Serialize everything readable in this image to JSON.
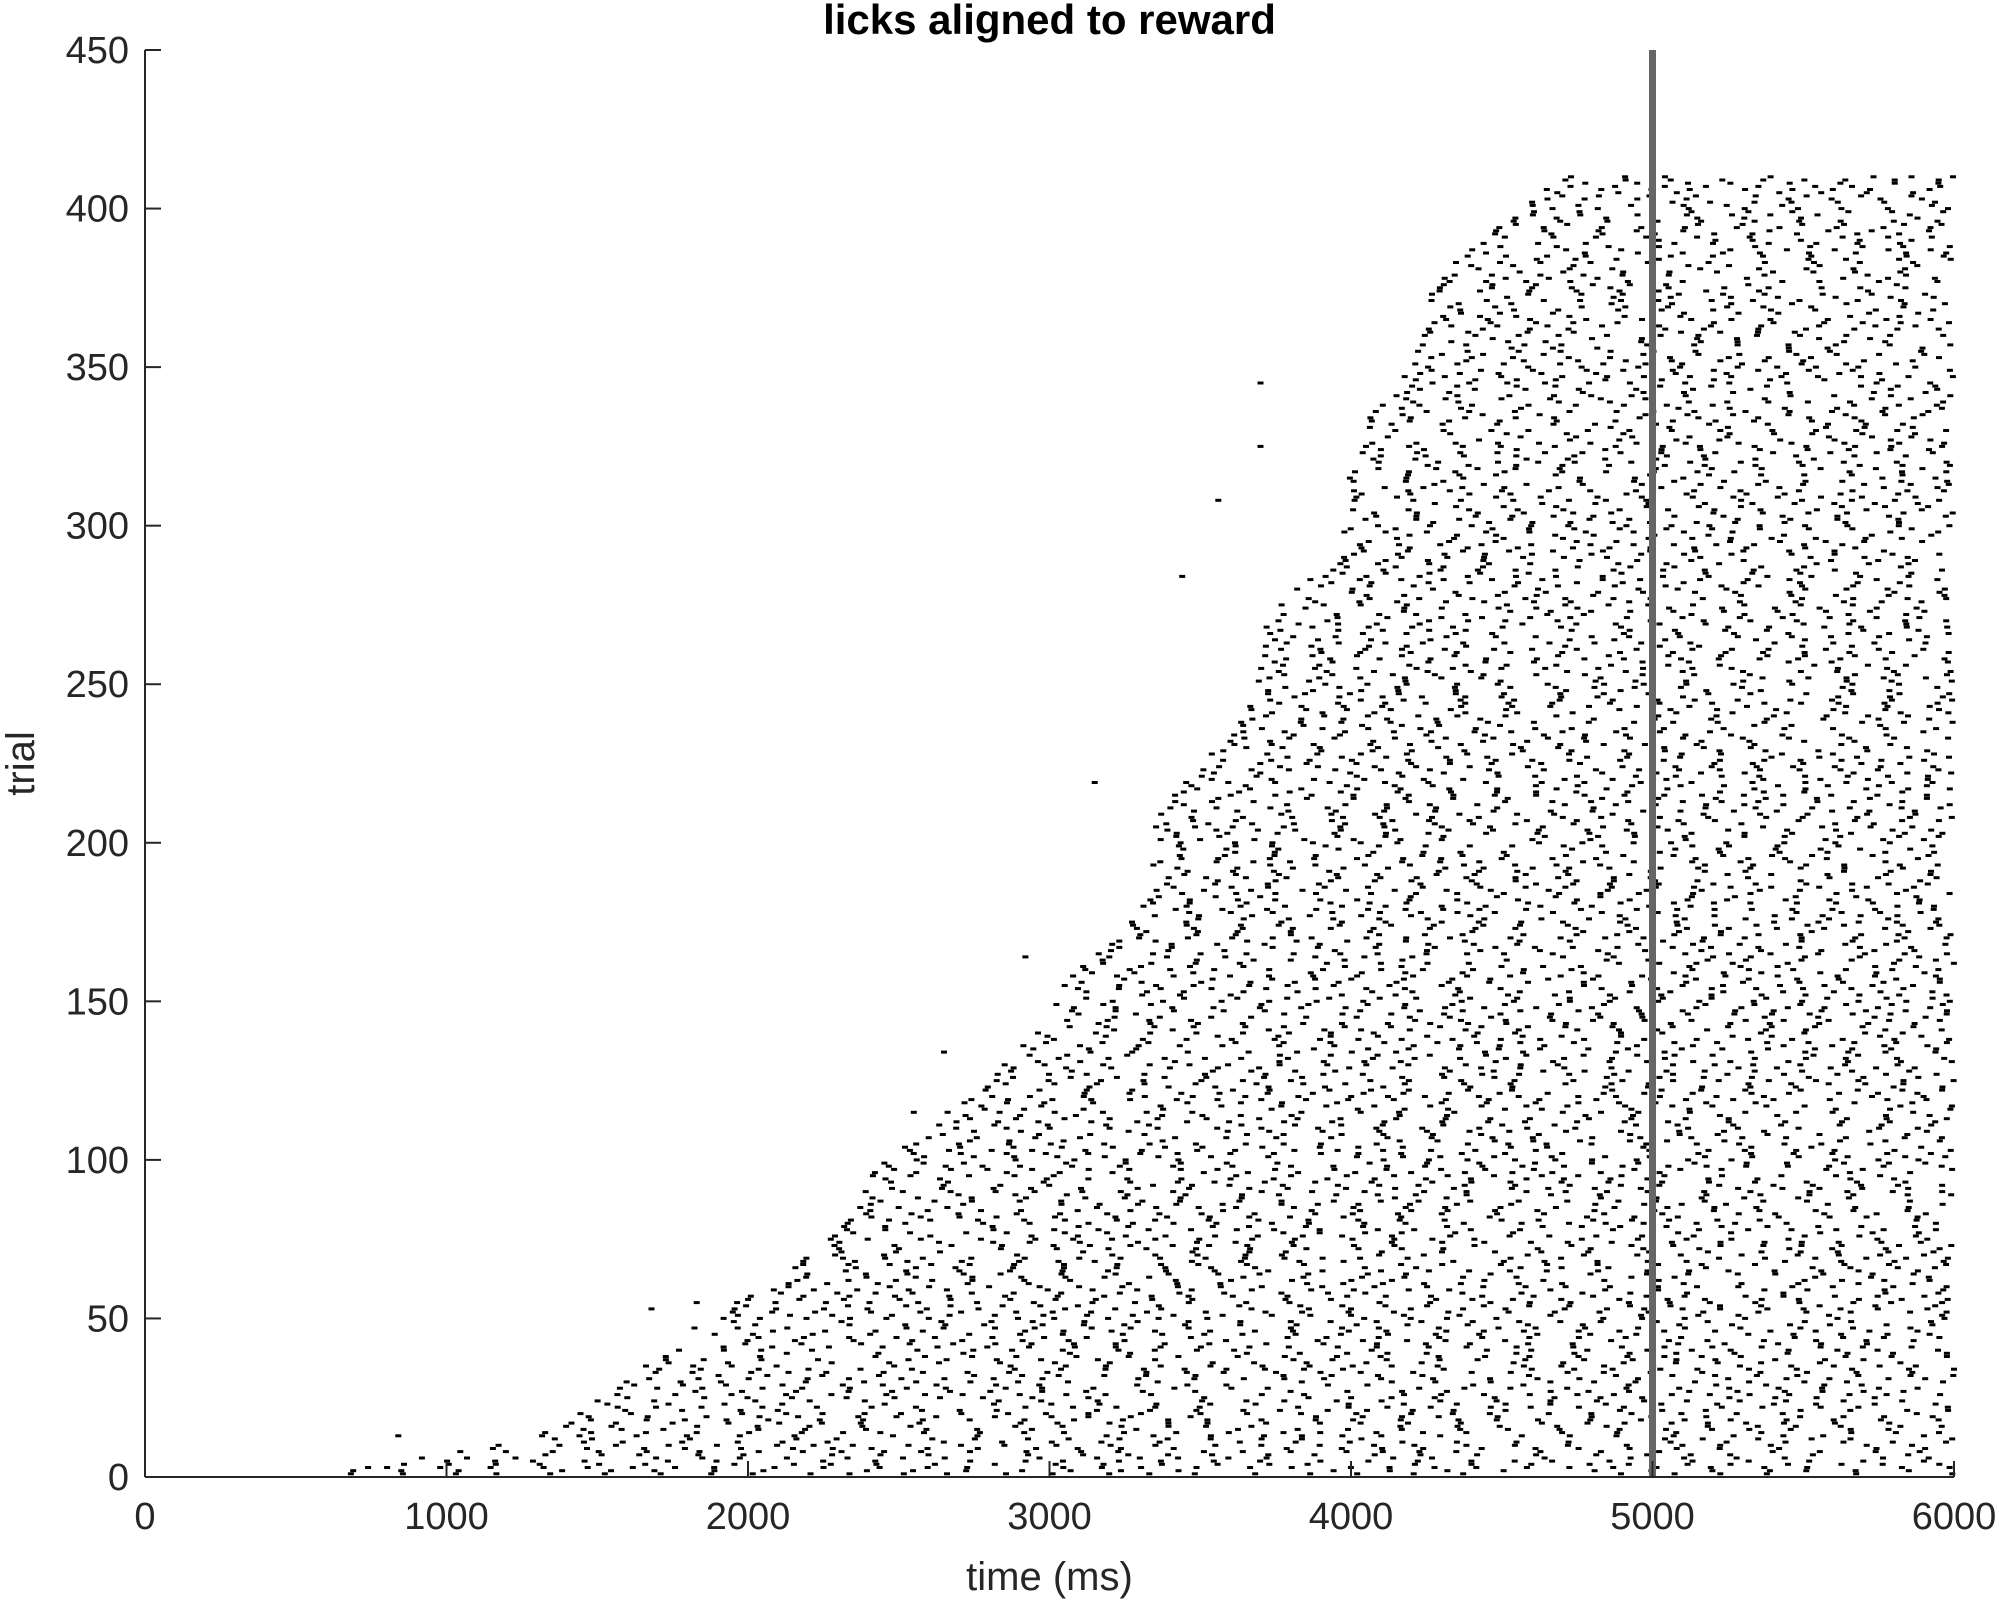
{
  "chart_data": {
    "type": "scatter",
    "marker": "short horizontal tick (lick event)",
    "title": "licks aligned to reward",
    "xlabel": "time (ms)",
    "ylabel": "trial",
    "xlim": [
      0,
      6000
    ],
    "ylim": [
      0,
      450
    ],
    "xticks": [
      0,
      1000,
      2000,
      3000,
      4000,
      5000,
      6000
    ],
    "yticks": [
      0,
      50,
      100,
      150,
      200,
      250,
      300,
      350,
      400,
      450
    ],
    "grid": false,
    "legend": "none",
    "n_trials": 410,
    "reward_line": {
      "x": 5000,
      "color": "#666666"
    },
    "lick_window_start": [
      {
        "trial": 1,
        "time": 600
      },
      {
        "trial": 10,
        "time": 1100
      },
      {
        "trial": 20,
        "time": 1400
      },
      {
        "trial": 30,
        "time": 1600
      },
      {
        "trial": 50,
        "time": 1900
      },
      {
        "trial": 75,
        "time": 2200
      },
      {
        "trial": 100,
        "time": 2500
      },
      {
        "trial": 125,
        "time": 2750
      },
      {
        "trial": 150,
        "time": 3050
      },
      {
        "trial": 175,
        "time": 3250
      },
      {
        "trial": 200,
        "time": 3350
      },
      {
        "trial": 225,
        "time": 3500
      },
      {
        "trial": 250,
        "time": 3650
      },
      {
        "trial": 275,
        "time": 3800
      },
      {
        "trial": 300,
        "time": 3950
      },
      {
        "trial": 325,
        "time": 4050
      },
      {
        "trial": 350,
        "time": 4150
      },
      {
        "trial": 375,
        "time": 4300
      },
      {
        "trial": 400,
        "time": 4550
      },
      {
        "trial": 410,
        "time": 4650
      }
    ],
    "lick_window_end": 6000,
    "lick_interval_ms": 150,
    "isolated_early_licks": [
      {
        "trial": 345,
        "time": 3700
      },
      {
        "trial": 325,
        "time": 3700
      },
      {
        "trial": 308,
        "time": 3560
      },
      {
        "trial": 284,
        "time": 3440
      },
      {
        "trial": 219,
        "time": 3150
      },
      {
        "trial": 164,
        "time": 2920
      },
      {
        "trial": 134,
        "time": 2650
      },
      {
        "trial": 115,
        "time": 2550
      },
      {
        "trial": 55,
        "time": 1830
      },
      {
        "trial": 53,
        "time": 1680
      },
      {
        "trial": 13,
        "time": 840
      },
      {
        "trial": 3,
        "time": 740
      }
    ]
  }
}
